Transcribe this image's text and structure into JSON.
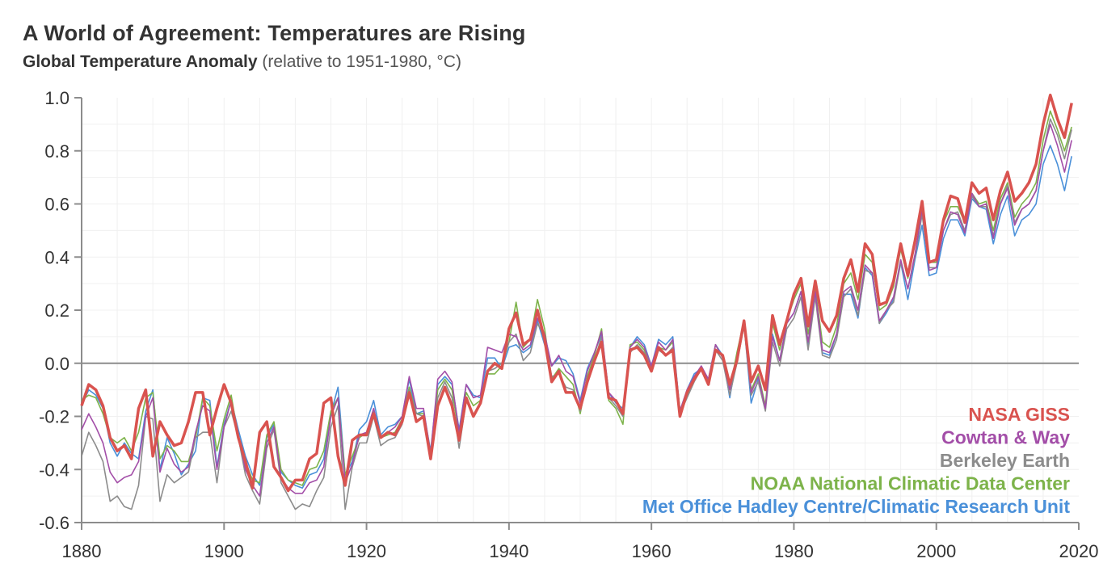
{
  "chart_data": {
    "type": "line",
    "title": "A World of Agreement: Temperatures are Rising",
    "subtitle": "Global Temperature Anomaly",
    "subtitle_note": "(relative to 1951-1980, °C)",
    "xlabel": "",
    "ylabel": "",
    "xlim": [
      1880,
      2020
    ],
    "ylim": [
      -0.6,
      1.0
    ],
    "x_ticks": [
      1880,
      1900,
      1920,
      1940,
      1960,
      1980,
      2000,
      2020
    ],
    "y_ticks": [
      1.0,
      0.8,
      0.6,
      0.4,
      0.2,
      0.0,
      -0.2,
      -0.4,
      -0.6
    ],
    "y_tick_labels": [
      "1.0",
      "0.8",
      "0.6",
      "0.4",
      "0.2",
      "0.0",
      "-0.2",
      "-0.4",
      "-0.6"
    ],
    "grid": true,
    "legend_position": "bottom-right",
    "x": [
      1880,
      1881,
      1882,
      1883,
      1884,
      1885,
      1886,
      1887,
      1888,
      1889,
      1890,
      1891,
      1892,
      1893,
      1894,
      1895,
      1896,
      1897,
      1898,
      1899,
      1900,
      1901,
      1902,
      1903,
      1904,
      1905,
      1906,
      1907,
      1908,
      1909,
      1910,
      1911,
      1912,
      1913,
      1914,
      1915,
      1916,
      1917,
      1918,
      1919,
      1920,
      1921,
      1922,
      1923,
      1924,
      1925,
      1926,
      1927,
      1928,
      1929,
      1930,
      1931,
      1932,
      1933,
      1934,
      1935,
      1936,
      1937,
      1938,
      1939,
      1940,
      1941,
      1942,
      1943,
      1944,
      1945,
      1946,
      1947,
      1948,
      1949,
      1950,
      1951,
      1952,
      1953,
      1954,
      1955,
      1956,
      1957,
      1958,
      1959,
      1960,
      1961,
      1962,
      1963,
      1964,
      1965,
      1966,
      1967,
      1968,
      1969,
      1970,
      1971,
      1972,
      1973,
      1974,
      1975,
      1976,
      1977,
      1978,
      1979,
      1980,
      1981,
      1982,
      1983,
      1984,
      1985,
      1986,
      1987,
      1988,
      1989,
      1990,
      1991,
      1992,
      1993,
      1994,
      1995,
      1996,
      1997,
      1998,
      1999,
      2000,
      2001,
      2002,
      2003,
      2004,
      2005,
      2006,
      2007,
      2008,
      2009,
      2010,
      2011,
      2012,
      2013,
      2014,
      2015,
      2016,
      2017,
      2018,
      2019
    ],
    "series": [
      {
        "name": "Met Office Hadley Centre/Climatic Research Unit",
        "color": "#4a90d9",
        "values": [
          -0.16,
          -0.1,
          -0.12,
          -0.17,
          -0.3,
          -0.35,
          -0.3,
          -0.34,
          -0.36,
          -0.18,
          -0.1,
          -0.4,
          -0.28,
          -0.34,
          -0.42,
          -0.38,
          -0.33,
          -0.13,
          -0.14,
          -0.39,
          -0.23,
          -0.14,
          -0.25,
          -0.35,
          -0.42,
          -0.46,
          -0.28,
          -0.23,
          -0.41,
          -0.44,
          -0.46,
          -0.47,
          -0.42,
          -0.41,
          -0.36,
          -0.19,
          -0.09,
          -0.42,
          -0.37,
          -0.25,
          -0.22,
          -0.14,
          -0.27,
          -0.24,
          -0.23,
          -0.2,
          -0.06,
          -0.19,
          -0.18,
          -0.33,
          -0.08,
          -0.05,
          -0.08,
          -0.25,
          -0.08,
          -0.12,
          -0.13,
          0.02,
          0.02,
          -0.02,
          0.06,
          0.07,
          0.04,
          0.06,
          0.16,
          0.07,
          -0.01,
          0.02,
          0.01,
          -0.04,
          -0.14,
          -0.02,
          0.04,
          0.11,
          -0.11,
          -0.15,
          -0.17,
          0.06,
          0.1,
          0.07,
          -0.01,
          0.09,
          0.07,
          0.1,
          -0.18,
          -0.1,
          -0.04,
          -0.02,
          -0.06,
          0.07,
          0.03,
          -0.13,
          0.03,
          0.15,
          -0.15,
          -0.06,
          -0.17,
          0.11,
          0.01,
          0.15,
          0.19,
          0.27,
          0.07,
          0.28,
          0.04,
          0.03,
          0.11,
          0.26,
          0.26,
          0.17,
          0.36,
          0.33,
          0.15,
          0.19,
          0.24,
          0.38,
          0.24,
          0.39,
          0.52,
          0.33,
          0.34,
          0.47,
          0.54,
          0.54,
          0.48,
          0.62,
          0.59,
          0.58,
          0.45,
          0.56,
          0.63,
          0.48,
          0.54,
          0.56,
          0.6,
          0.75,
          0.82,
          0.75,
          0.65,
          0.78
        ]
      },
      {
        "name": "NOAA National Climatic Data Center",
        "color": "#7db34a",
        "values": [
          -0.14,
          -0.12,
          -0.13,
          -0.19,
          -0.28,
          -0.3,
          -0.28,
          -0.33,
          -0.26,
          -0.13,
          -0.11,
          -0.36,
          -0.31,
          -0.33,
          -0.37,
          -0.37,
          -0.28,
          -0.13,
          -0.16,
          -0.33,
          -0.21,
          -0.12,
          -0.28,
          -0.37,
          -0.44,
          -0.45,
          -0.27,
          -0.22,
          -0.4,
          -0.44,
          -0.45,
          -0.46,
          -0.4,
          -0.39,
          -0.33,
          -0.18,
          -0.13,
          -0.42,
          -0.35,
          -0.28,
          -0.26,
          -0.18,
          -0.28,
          -0.27,
          -0.26,
          -0.21,
          -0.09,
          -0.19,
          -0.19,
          -0.34,
          -0.1,
          -0.06,
          -0.1,
          -0.27,
          -0.11,
          -0.16,
          -0.14,
          -0.04,
          -0.04,
          -0.01,
          0.08,
          0.23,
          0.06,
          0.09,
          0.24,
          0.13,
          -0.06,
          -0.02,
          -0.05,
          -0.08,
          -0.19,
          -0.05,
          0.03,
          0.13,
          -0.14,
          -0.17,
          -0.23,
          0.07,
          0.08,
          0.05,
          -0.01,
          0.06,
          0.05,
          0.08,
          -0.18,
          -0.12,
          -0.06,
          -0.02,
          -0.07,
          0.07,
          0.02,
          -0.1,
          0.04,
          0.16,
          -0.1,
          -0.04,
          -0.16,
          0.15,
          0.05,
          0.16,
          0.24,
          0.3,
          0.11,
          0.28,
          0.08,
          0.06,
          0.14,
          0.3,
          0.34,
          0.24,
          0.41,
          0.38,
          0.2,
          0.22,
          0.29,
          0.43,
          0.32,
          0.45,
          0.6,
          0.38,
          0.38,
          0.53,
          0.59,
          0.59,
          0.53,
          0.64,
          0.6,
          0.61,
          0.5,
          0.62,
          0.68,
          0.55,
          0.6,
          0.63,
          0.68,
          0.84,
          0.95,
          0.88,
          0.8,
          0.89
        ]
      },
      {
        "name": "Berkeley Earth",
        "color": "#8c8c8c",
        "values": [
          -0.35,
          -0.26,
          -0.31,
          -0.37,
          -0.52,
          -0.5,
          -0.54,
          -0.55,
          -0.46,
          -0.2,
          -0.21,
          -0.52,
          -0.42,
          -0.45,
          -0.43,
          -0.41,
          -0.28,
          -0.26,
          -0.26,
          -0.45,
          -0.24,
          -0.18,
          -0.28,
          -0.42,
          -0.48,
          -0.53,
          -0.32,
          -0.25,
          -0.45,
          -0.5,
          -0.55,
          -0.53,
          -0.54,
          -0.48,
          -0.43,
          -0.24,
          -0.16,
          -0.55,
          -0.39,
          -0.3,
          -0.3,
          -0.2,
          -0.31,
          -0.29,
          -0.28,
          -0.23,
          -0.1,
          -0.19,
          -0.2,
          -0.36,
          -0.13,
          -0.07,
          -0.13,
          -0.32,
          -0.14,
          -0.2,
          -0.15,
          -0.03,
          -0.02,
          0.0,
          0.08,
          0.11,
          0.01,
          0.04,
          0.15,
          0.1,
          -0.05,
          -0.04,
          -0.09,
          -0.1,
          -0.18,
          -0.07,
          0.01,
          0.1,
          -0.13,
          -0.16,
          -0.2,
          0.04,
          0.07,
          0.04,
          -0.02,
          0.05,
          0.03,
          0.06,
          -0.19,
          -0.13,
          -0.07,
          -0.02,
          -0.08,
          0.05,
          0.01,
          -0.12,
          0.0,
          0.14,
          -0.12,
          -0.07,
          -0.18,
          0.08,
          -0.01,
          0.13,
          0.17,
          0.25,
          0.05,
          0.25,
          0.03,
          0.02,
          0.09,
          0.25,
          0.28,
          0.18,
          0.35,
          0.34,
          0.15,
          0.2,
          0.23,
          0.38,
          0.28,
          0.4,
          0.56,
          0.36,
          0.36,
          0.5,
          0.56,
          0.57,
          0.5,
          0.63,
          0.59,
          0.59,
          0.48,
          0.6,
          0.67,
          0.53,
          0.58,
          0.6,
          0.65,
          0.8,
          0.92,
          0.86,
          0.77,
          0.88
        ]
      },
      {
        "name": "Cowtan & Way",
        "color": "#a34ea8",
        "values": [
          -0.25,
          -0.19,
          -0.24,
          -0.3,
          -0.41,
          -0.45,
          -0.43,
          -0.42,
          -0.37,
          -0.2,
          -0.13,
          -0.41,
          -0.32,
          -0.38,
          -0.41,
          -0.39,
          -0.26,
          -0.16,
          -0.18,
          -0.4,
          -0.24,
          -0.14,
          -0.27,
          -0.4,
          -0.46,
          -0.5,
          -0.3,
          -0.24,
          -0.43,
          -0.47,
          -0.49,
          -0.49,
          -0.45,
          -0.44,
          -0.39,
          -0.2,
          -0.13,
          -0.45,
          -0.38,
          -0.27,
          -0.26,
          -0.17,
          -0.28,
          -0.26,
          -0.24,
          -0.2,
          -0.05,
          -0.17,
          -0.17,
          -0.34,
          -0.06,
          -0.03,
          -0.07,
          -0.26,
          -0.08,
          -0.13,
          -0.12,
          0.06,
          0.05,
          0.04,
          0.11,
          0.1,
          0.05,
          0.07,
          0.17,
          0.11,
          -0.01,
          0.03,
          -0.03,
          -0.05,
          -0.15,
          -0.03,
          0.04,
          0.12,
          -0.11,
          -0.14,
          -0.19,
          0.06,
          0.09,
          0.06,
          -0.01,
          0.08,
          0.05,
          0.09,
          -0.18,
          -0.1,
          -0.05,
          -0.01,
          -0.06,
          0.07,
          0.02,
          -0.1,
          0.02,
          0.15,
          -0.11,
          -0.05,
          -0.17,
          0.1,
          0.01,
          0.15,
          0.19,
          0.27,
          0.08,
          0.27,
          0.05,
          0.04,
          0.11,
          0.27,
          0.29,
          0.2,
          0.37,
          0.34,
          0.16,
          0.2,
          0.25,
          0.39,
          0.28,
          0.41,
          0.58,
          0.35,
          0.36,
          0.5,
          0.57,
          0.56,
          0.49,
          0.64,
          0.59,
          0.6,
          0.47,
          0.6,
          0.66,
          0.52,
          0.58,
          0.6,
          0.65,
          0.8,
          0.9,
          0.82,
          0.72,
          0.84
        ]
      },
      {
        "name": "NASA GISS",
        "color": "#d9534f",
        "values": [
          -0.16,
          -0.08,
          -0.1,
          -0.16,
          -0.28,
          -0.33,
          -0.31,
          -0.36,
          -0.17,
          -0.1,
          -0.35,
          -0.22,
          -0.27,
          -0.31,
          -0.3,
          -0.22,
          -0.11,
          -0.11,
          -0.27,
          -0.17,
          -0.08,
          -0.15,
          -0.28,
          -0.37,
          -0.47,
          -0.26,
          -0.22,
          -0.39,
          -0.43,
          -0.48,
          -0.44,
          -0.44,
          -0.36,
          -0.34,
          -0.15,
          -0.13,
          -0.35,
          -0.46,
          -0.29,
          -0.27,
          -0.27,
          -0.19,
          -0.28,
          -0.26,
          -0.27,
          -0.22,
          -0.11,
          -0.22,
          -0.2,
          -0.36,
          -0.16,
          -0.09,
          -0.16,
          -0.29,
          -0.13,
          -0.2,
          -0.15,
          -0.03,
          0.0,
          -0.02,
          0.13,
          0.19,
          0.07,
          0.09,
          0.2,
          0.09,
          -0.07,
          -0.03,
          -0.11,
          -0.11,
          -0.17,
          -0.07,
          0.01,
          0.08,
          -0.13,
          -0.14,
          -0.19,
          0.05,
          0.06,
          0.03,
          -0.03,
          0.06,
          0.03,
          0.05,
          -0.2,
          -0.11,
          -0.06,
          -0.02,
          -0.08,
          0.05,
          0.03,
          -0.08,
          0.01,
          0.16,
          -0.07,
          -0.01,
          -0.1,
          0.18,
          0.07,
          0.16,
          0.26,
          0.32,
          0.14,
          0.31,
          0.16,
          0.12,
          0.18,
          0.32,
          0.39,
          0.27,
          0.45,
          0.41,
          0.22,
          0.23,
          0.31,
          0.45,
          0.33,
          0.46,
          0.61,
          0.38,
          0.39,
          0.54,
          0.63,
          0.62,
          0.53,
          0.68,
          0.64,
          0.66,
          0.54,
          0.65,
          0.72,
          0.61,
          0.64,
          0.68,
          0.75,
          0.9,
          1.01,
          0.92,
          0.85,
          0.98
        ]
      }
    ]
  }
}
